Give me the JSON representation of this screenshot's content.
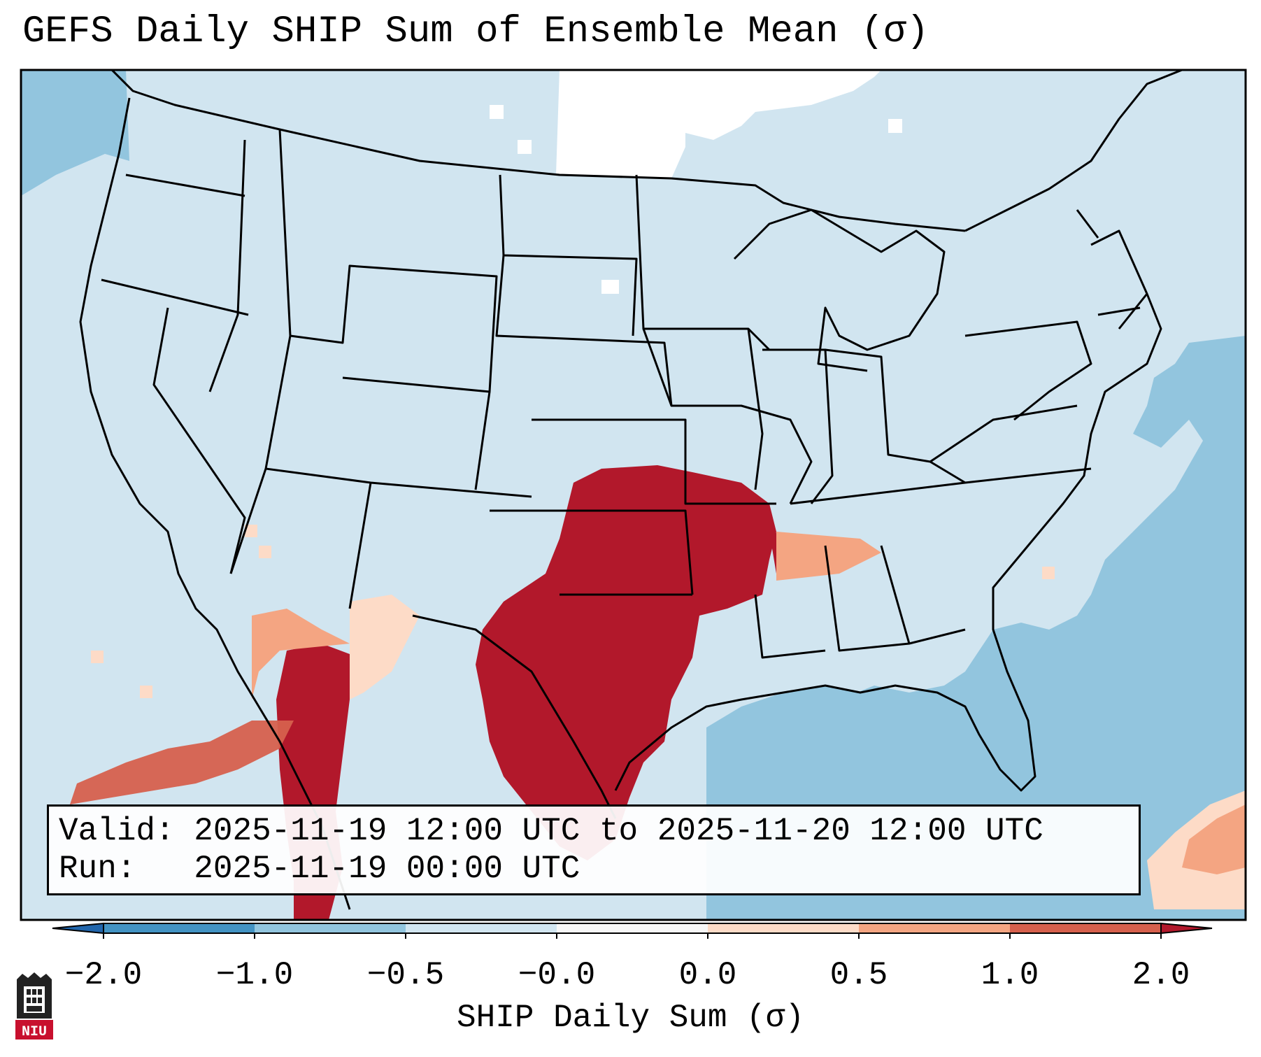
{
  "title": "GEFS Daily SHIP Sum of Ensemble Mean (σ)",
  "info": {
    "valid_label": "Valid:",
    "valid_value": "2025-11-19 12:00 UTC to 2025-11-20 12:00 UTC",
    "run_label": "Run:",
    "run_value": "2025-11-19 00:00 UTC"
  },
  "colorbar": {
    "label": "SHIP Daily Sum (σ)",
    "ticks": [
      "−2.0",
      "−1.0",
      "−0.5",
      "−0.0",
      "0.0",
      "0.5",
      "1.0",
      "2.0"
    ],
    "colors": [
      "#4393c3",
      "#92c5de",
      "#d1e5f0",
      "#f7f7f7",
      "#fddbc7",
      "#f4a582",
      "#d6604d"
    ],
    "under_color": "#2166ac",
    "over_color": "#b2182b"
  },
  "map_colors": {
    "ocean_neg": "#92c5de",
    "land_neutral": "#d1e5f0",
    "high": "#b2182b",
    "mid_high": "#d6604d",
    "mid": "#f4a582",
    "low": "#fddbc7",
    "white": "#ffffff",
    "line": "#000000"
  },
  "logo": {
    "text": "NIU",
    "color": "#c8102e"
  }
}
